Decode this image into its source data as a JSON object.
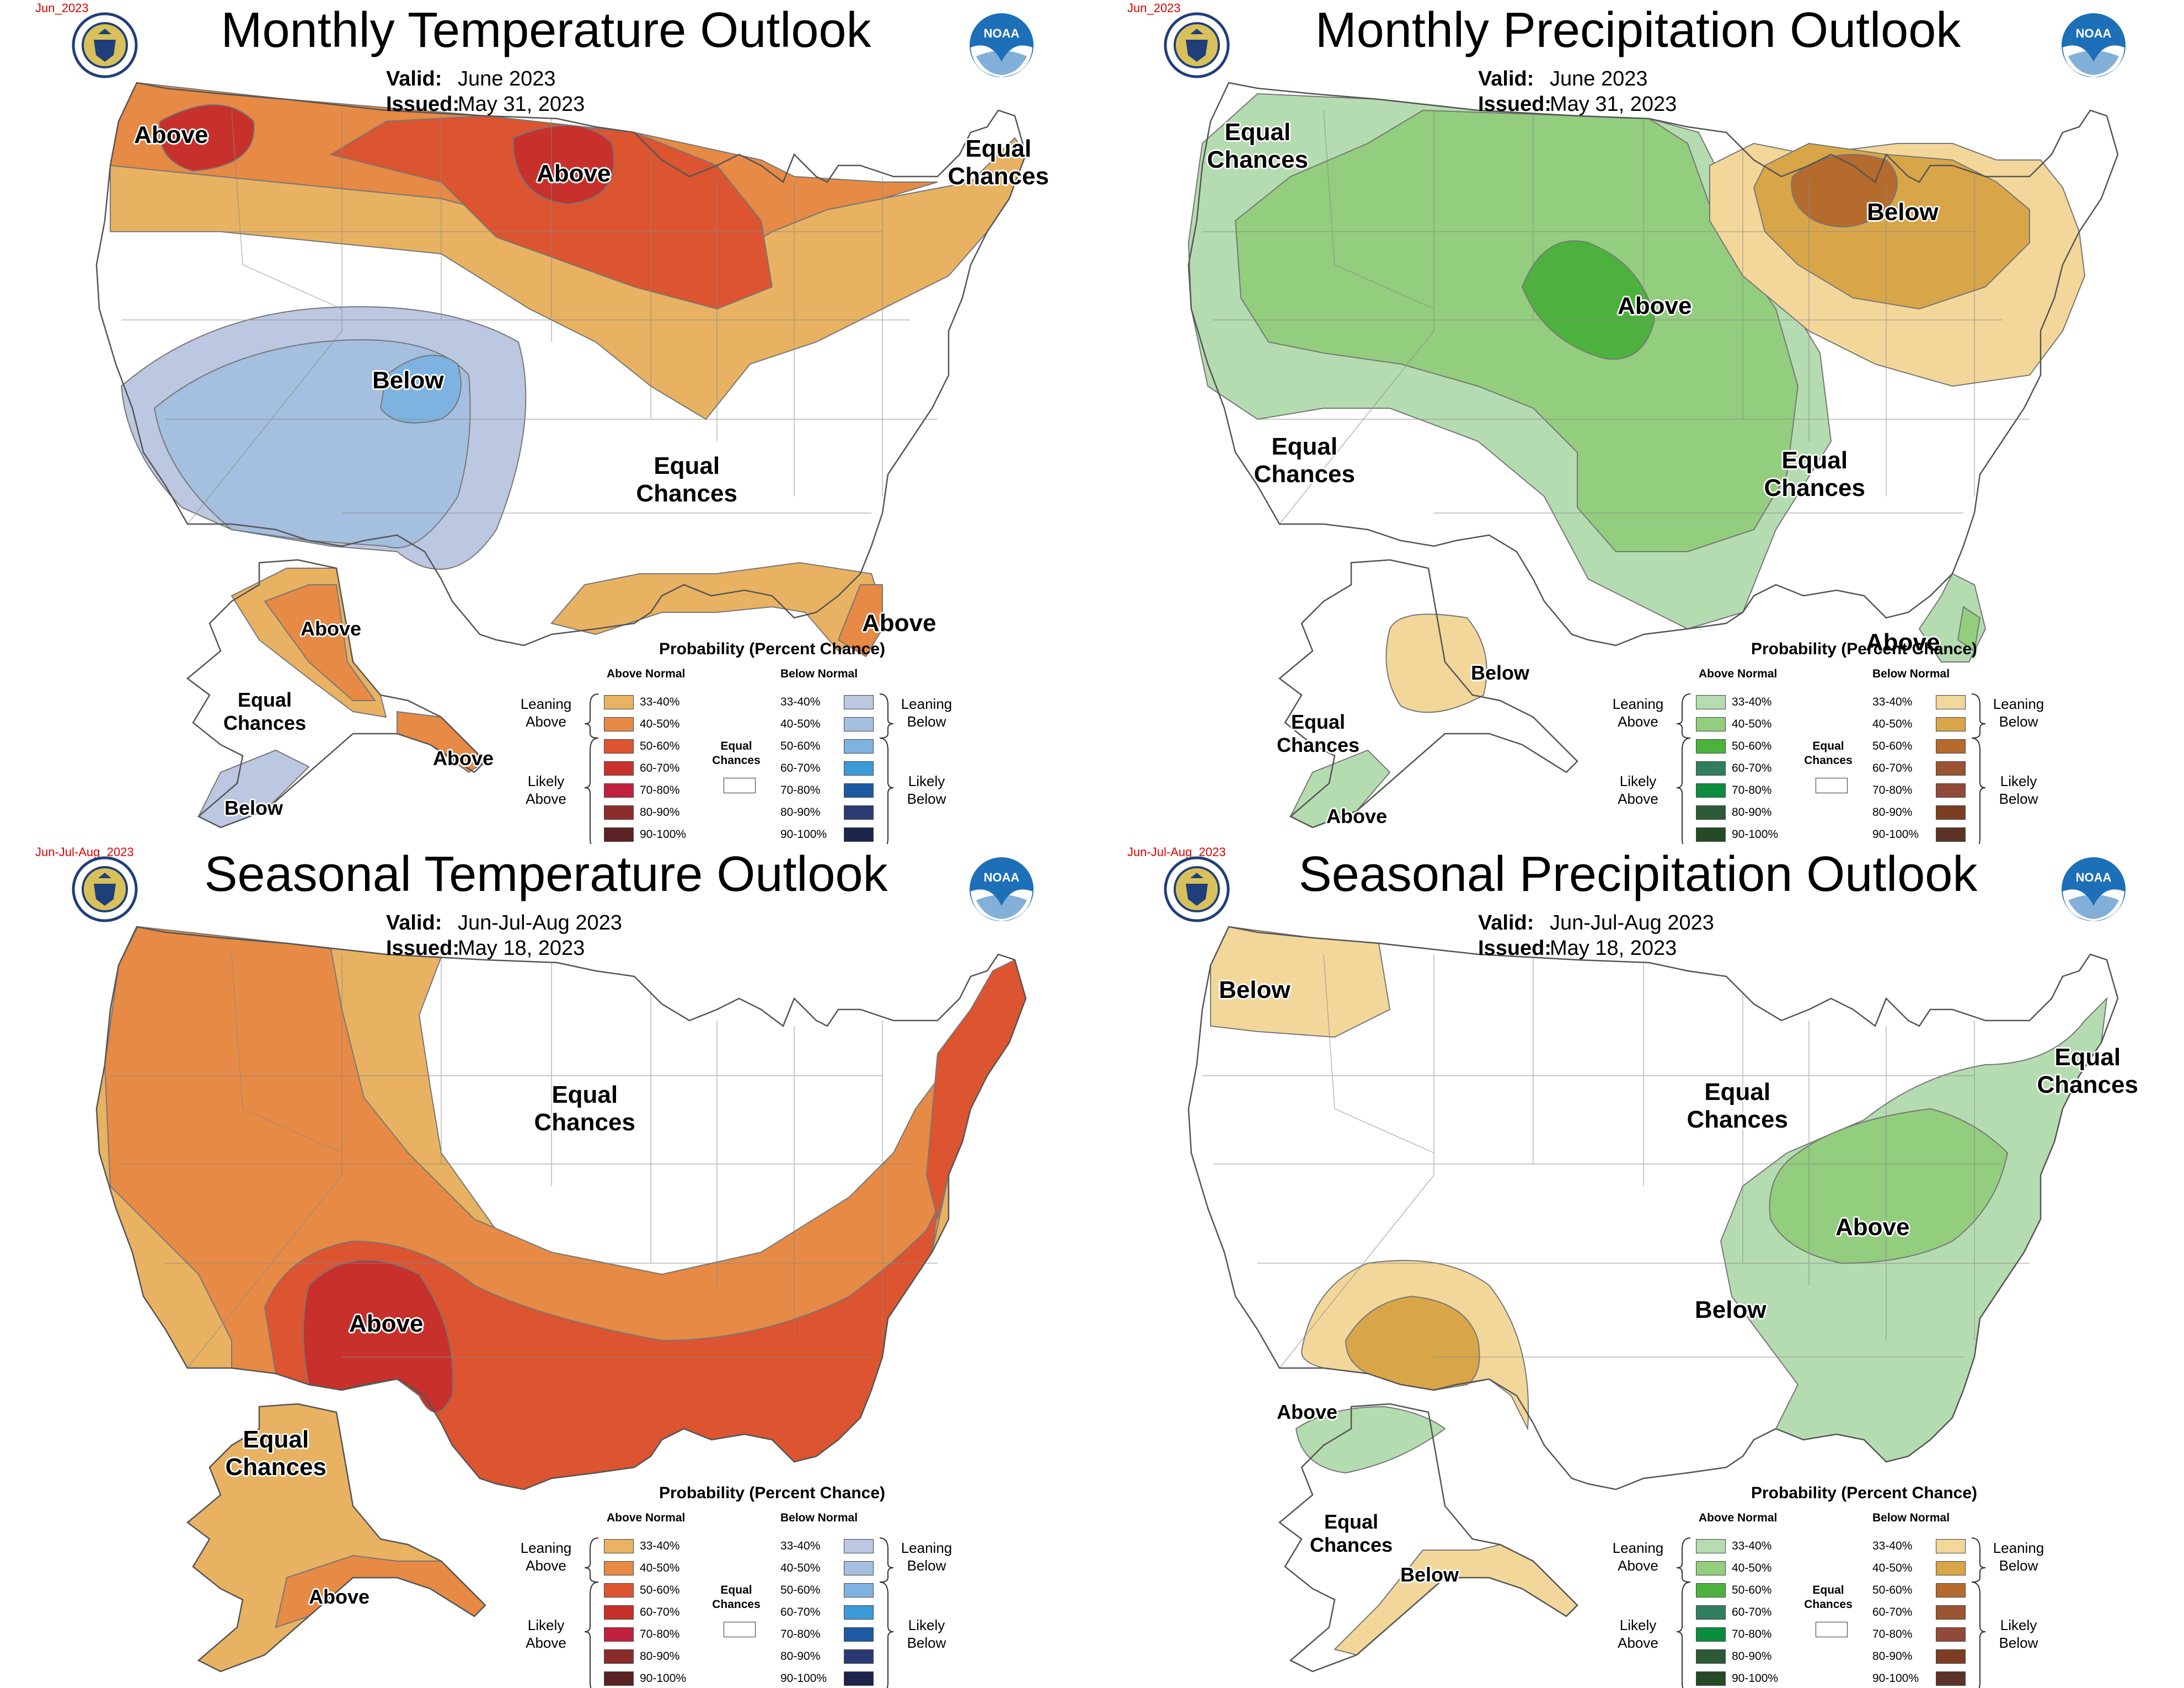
{
  "colors": {
    "temp_above": [
      "#e8b262",
      "#e68a45",
      "#dc5430",
      "#c8312b",
      "#c2203f",
      "#8b2c2c",
      "#5a2222"
    ],
    "temp_below": [
      "#bcc7e1",
      "#a4bfdf",
      "#7eb3e1",
      "#3c9ad8",
      "#1c5aa2",
      "#2c3a74",
      "#1c244c"
    ],
    "precip_above": [
      "#b5dcb0",
      "#93cd7e",
      "#4cb23d",
      "#2f7f5f",
      "#0b8c3f",
      "#2c5a36",
      "#244a26"
    ],
    "precip_below": [
      "#f3d79a",
      "#d8a649",
      "#b56a2e",
      "#9a5431",
      "#914a37",
      "#7c3e22",
      "#5c3227"
    ],
    "noaa_blue": "#1d6fb8",
    "date_tag": "#e00000"
  },
  "panels": [
    {
      "date_tag": "Jun_2023",
      "title": "Monthly Temperature Outlook",
      "valid_label": "Valid:",
      "valid_value": "June 2023",
      "issued_label": "Issued:",
      "issued_value": "May 31, 2023",
      "labels": [
        "Above",
        "Above",
        "Equal\nChances",
        "Below",
        "Equal\nChances",
        "Above",
        "Above",
        "Equal\nChances",
        "Above",
        "Below"
      ],
      "legend_title": "Probability (Percent Chance)",
      "legend_left_head": "Above Normal",
      "legend_right_head": "Below Normal",
      "left_scale": "temp_above",
      "right_scale": "temp_below"
    },
    {
      "date_tag": "Jun_2023",
      "title": "Monthly Precipitation Outlook",
      "valid_label": "Valid:",
      "valid_value": "June 2023",
      "issued_label": "Issued:",
      "issued_value": "May 31, 2023",
      "labels": [
        "Equal\nChances",
        "Above",
        "Below",
        "Equal\nChances",
        "Equal\nChances",
        "Above",
        "Below",
        "Equal\nChances",
        "Above"
      ],
      "legend_title": "Probability (Percent Chance)",
      "legend_left_head": "Above Normal",
      "legend_right_head": "Below Normal",
      "left_scale": "precip_above",
      "right_scale": "precip_below"
    },
    {
      "date_tag": "Jun-Jul-Aug_2023",
      "title": "Seasonal Temperature Outlook",
      "valid_label": "Valid:",
      "valid_value": "Jun-Jul-Aug 2023",
      "issued_label": "Issued:",
      "issued_value": "May 18, 2023",
      "labels": [
        "Equal\nChances",
        "Above",
        "Equal\nChances",
        "Above"
      ],
      "legend_title": "Probability (Percent Chance)",
      "legend_left_head": "Above Normal",
      "legend_right_head": "Below Normal",
      "left_scale": "temp_above",
      "right_scale": "temp_below"
    },
    {
      "date_tag": "Jun-Jul-Aug_2023",
      "title": "Seasonal Precipitation Outlook",
      "valid_label": "Valid:",
      "valid_value": "Jun-Jul-Aug 2023",
      "issued_label": "Issued:",
      "issued_value": "May 18, 2023",
      "labels": [
        "Below",
        "Equal\nChances",
        "Equal\nChances",
        "Above",
        "Below",
        "Above",
        "Equal\nChances",
        "Below"
      ],
      "legend_title": "Probability (Percent Chance)",
      "legend_left_head": "Above Normal",
      "legend_right_head": "Below Normal",
      "left_scale": "precip_above",
      "right_scale": "precip_below"
    }
  ],
  "legend_ranges": [
    "33-40%",
    "40-50%",
    "50-60%",
    "60-70%",
    "70-80%",
    "80-90%",
    "90-100%"
  ],
  "legend_sides": {
    "leaning_above": "Leaning\nAbove",
    "likely_above": "Likely\nAbove",
    "leaning_below": "Leaning\nBelow",
    "likely_below": "Likely\nBelow",
    "equal": "Equal\nChances"
  },
  "icons": {
    "seal": "doc-seal-icon",
    "noaa": "noaa-logo-icon",
    "noaa_text": "NOAA"
  }
}
